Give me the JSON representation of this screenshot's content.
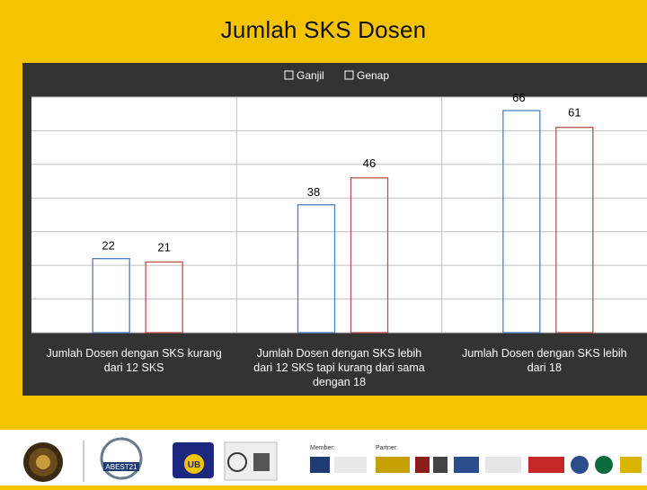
{
  "slide": {
    "title": "Jumlah SKS Dosen"
  },
  "chart_data": {
    "type": "bar",
    "title": "Jumlah SKS Dosen",
    "categories": [
      [
        "Jumlah Dosen dengan SKS kurang",
        "dari 12 SKS"
      ],
      [
        "Jumlah Dosen dengan SKS lebih",
        "dari 12 SKS tapi kurang dari sama",
        "dengan 18"
      ],
      [
        "Jumlah Dosen dengan SKS lebih",
        "dari 18"
      ]
    ],
    "series": [
      {
        "name": "Ganjil",
        "color": "#4f81bd",
        "values": [
          22,
          38,
          66
        ]
      },
      {
        "name": "Genap",
        "color": "#c0504d",
        "values": [
          21,
          46,
          61
        ]
      }
    ],
    "ylim": [
      0,
      70
    ],
    "gridlines": true,
    "legend_position": "top-center",
    "xlabel": "",
    "ylabel": ""
  },
  "footer": {
    "logos": [
      {
        "name": "university-seal-logo"
      },
      {
        "name": "abest21-logo",
        "label": "ABEST21"
      },
      {
        "name": "ub-logo",
        "label": "UB"
      },
      {
        "name": "certification-logo"
      },
      {
        "name": "member-logos",
        "label": "Member:"
      },
      {
        "name": "partner-logos",
        "label": "Partner:"
      }
    ]
  }
}
